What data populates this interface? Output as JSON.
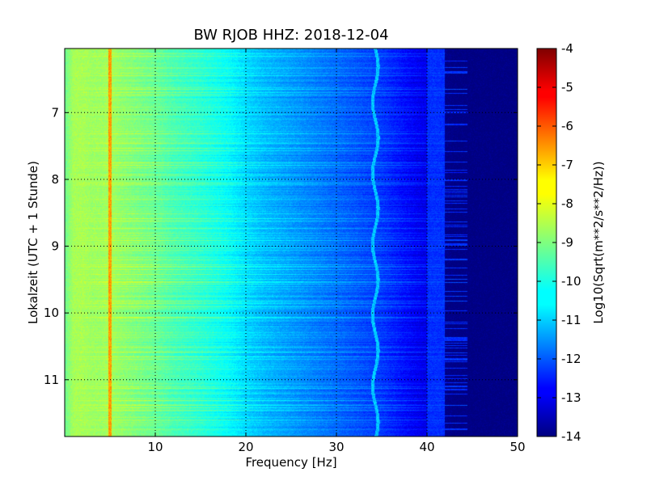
{
  "chart_data": {
    "type": "heatmap",
    "title": "BW RJOB HHZ: 2018-12-04",
    "xlabel": "Frequency [Hz]",
    "ylabel": "Lokalzeit (UTC + 1 Stunde)",
    "xlim": [
      0,
      50
    ],
    "ylim": [
      11.85,
      6.04
    ],
    "y_inverted": true,
    "x_ticks": [
      10,
      20,
      30,
      40,
      50
    ],
    "y_ticks": [
      7,
      8,
      9,
      10,
      11
    ],
    "grid": true,
    "grid_style": "dotted",
    "colormap": "jet",
    "colorbar": {
      "label": "Log10(Sqrt(m**2/s**2/Hz))",
      "range": [
        -14,
        -4
      ],
      "ticks": [
        -4,
        -5,
        -6,
        -7,
        -8,
        -9,
        -10,
        -11,
        -12,
        -13,
        -14
      ]
    },
    "spectrum_profile": {
      "freq": [
        0,
        1,
        2,
        3,
        4,
        5,
        6,
        8,
        10,
        12,
        15,
        18,
        20,
        22,
        25,
        28,
        30,
        32,
        35,
        38,
        40,
        41,
        42,
        43,
        44,
        46,
        48,
        50
      ],
      "value": [
        -9.2,
        -8.6,
        -8.6,
        -8.7,
        -8.7,
        -8.6,
        -8.8,
        -9.0,
        -9.2,
        -9.5,
        -9.8,
        -10.2,
        -10.6,
        -10.9,
        -11.2,
        -11.5,
        -11.7,
        -11.9,
        -12.2,
        -12.7,
        -13.0,
        -13.5,
        -13.9,
        -14.0,
        -14.0,
        -14.0,
        -14.0,
        -14.0
      ]
    },
    "annotations_spectral_lines": [
      {
        "freq": 5.0,
        "value": -6.8
      },
      {
        "freq": 34.3,
        "value": -10.8
      }
    ]
  }
}
